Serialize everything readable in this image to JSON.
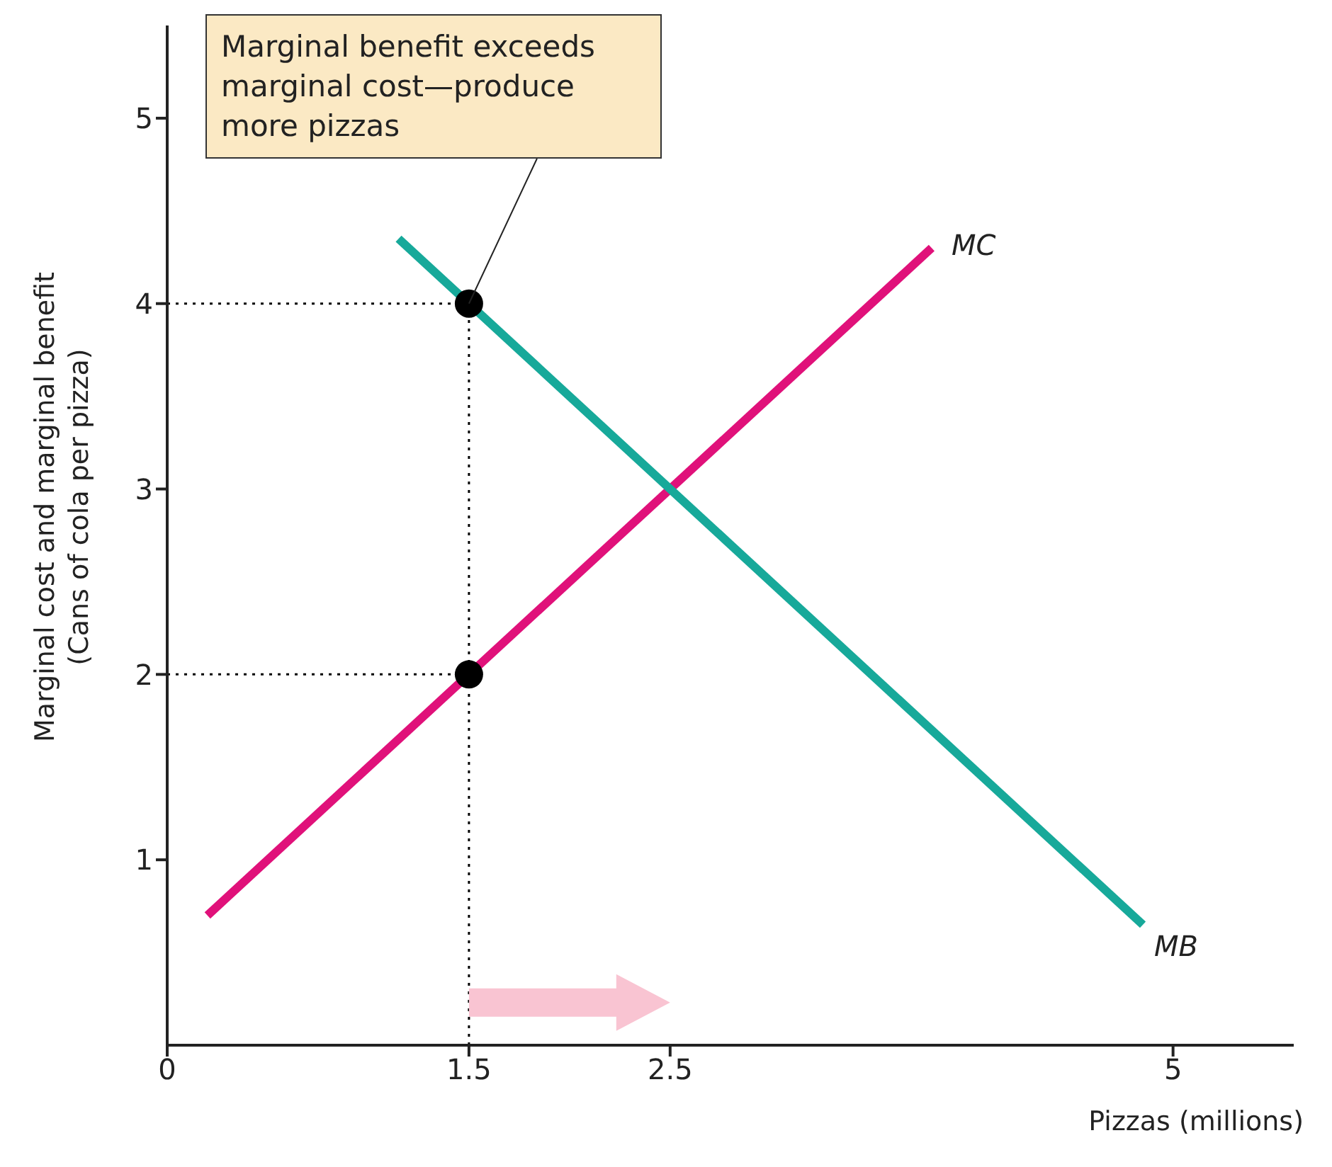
{
  "chart_data": {
    "type": "line",
    "xlabel": "Pizzas (millions)",
    "ylabel": "Marginal cost and marginal benefit\n(Cans of cola per pizza)",
    "xlim": [
      0,
      5.6
    ],
    "ylim": [
      0,
      5.5
    ],
    "xticks": [
      0,
      1.5,
      2.5,
      5
    ],
    "yticks": [
      1,
      2,
      3,
      4,
      5
    ],
    "grid": false,
    "legend": false,
    "line_style": "solid",
    "marker": "none",
    "annotations": [
      {
        "text": "Marginal benefit exceeds marginal cost—produce more pizzas",
        "x": 1.5,
        "y": 4
      }
    ],
    "series": [
      {
        "name": "MC",
        "color": "#e0117a",
        "x": [
          0.2,
          3.8
        ],
        "values": [
          0.7,
          4.3
        ]
      },
      {
        "name": "MB",
        "color": "#17a99a",
        "x": [
          1.15,
          4.85
        ],
        "values": [
          4.35,
          0.65
        ]
      },
      {
        "type": "line",
        "color": "#000000",
        "line_style": "dotted",
        "x": [
          0,
          1.5
        ],
        "values": [
          4,
          4
        ]
      },
      {
        "type": "line",
        "color": "#000000",
        "line_style": "dotted",
        "x": [
          0,
          1.5
        ],
        "values": [
          2,
          2
        ]
      },
      {
        "type": "line",
        "color": "#000000",
        "line_style": "dotted",
        "x": [
          1.5,
          1.5
        ],
        "values": [
          0,
          4
        ]
      },
      {
        "type": "scatter",
        "color": "#000000",
        "marker": "circle",
        "x": [
          1.5,
          1.5
        ],
        "values": [
          4,
          2
        ]
      }
    ]
  }
}
